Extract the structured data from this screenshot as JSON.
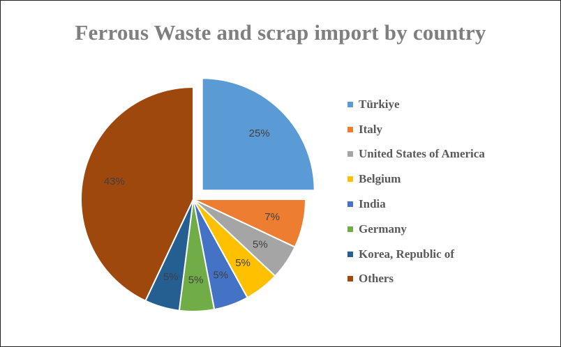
{
  "chart_data": {
    "type": "pie",
    "title": "Ferrous Waste and scrap import by country",
    "categories": [
      "Türkiye",
      "Italy",
      "United States of America",
      "Belgium",
      "India",
      "Germany",
      "Korea, Republic of",
      "Others"
    ],
    "values": [
      25,
      7,
      5,
      5,
      5,
      5,
      5,
      43
    ],
    "data_labels": [
      "25%",
      "7%",
      "5%",
      "5%",
      "5%",
      "5%",
      "5%",
      "43%"
    ],
    "colors": [
      "#5b9bd5",
      "#ed7d31",
      "#a5a5a5",
      "#ffc000",
      "#4472c4",
      "#70ad47",
      "#255e91",
      "#9e480e"
    ],
    "exploded": [
      true,
      false,
      false,
      false,
      false,
      false,
      false,
      false
    ],
    "legend_position": "right"
  }
}
